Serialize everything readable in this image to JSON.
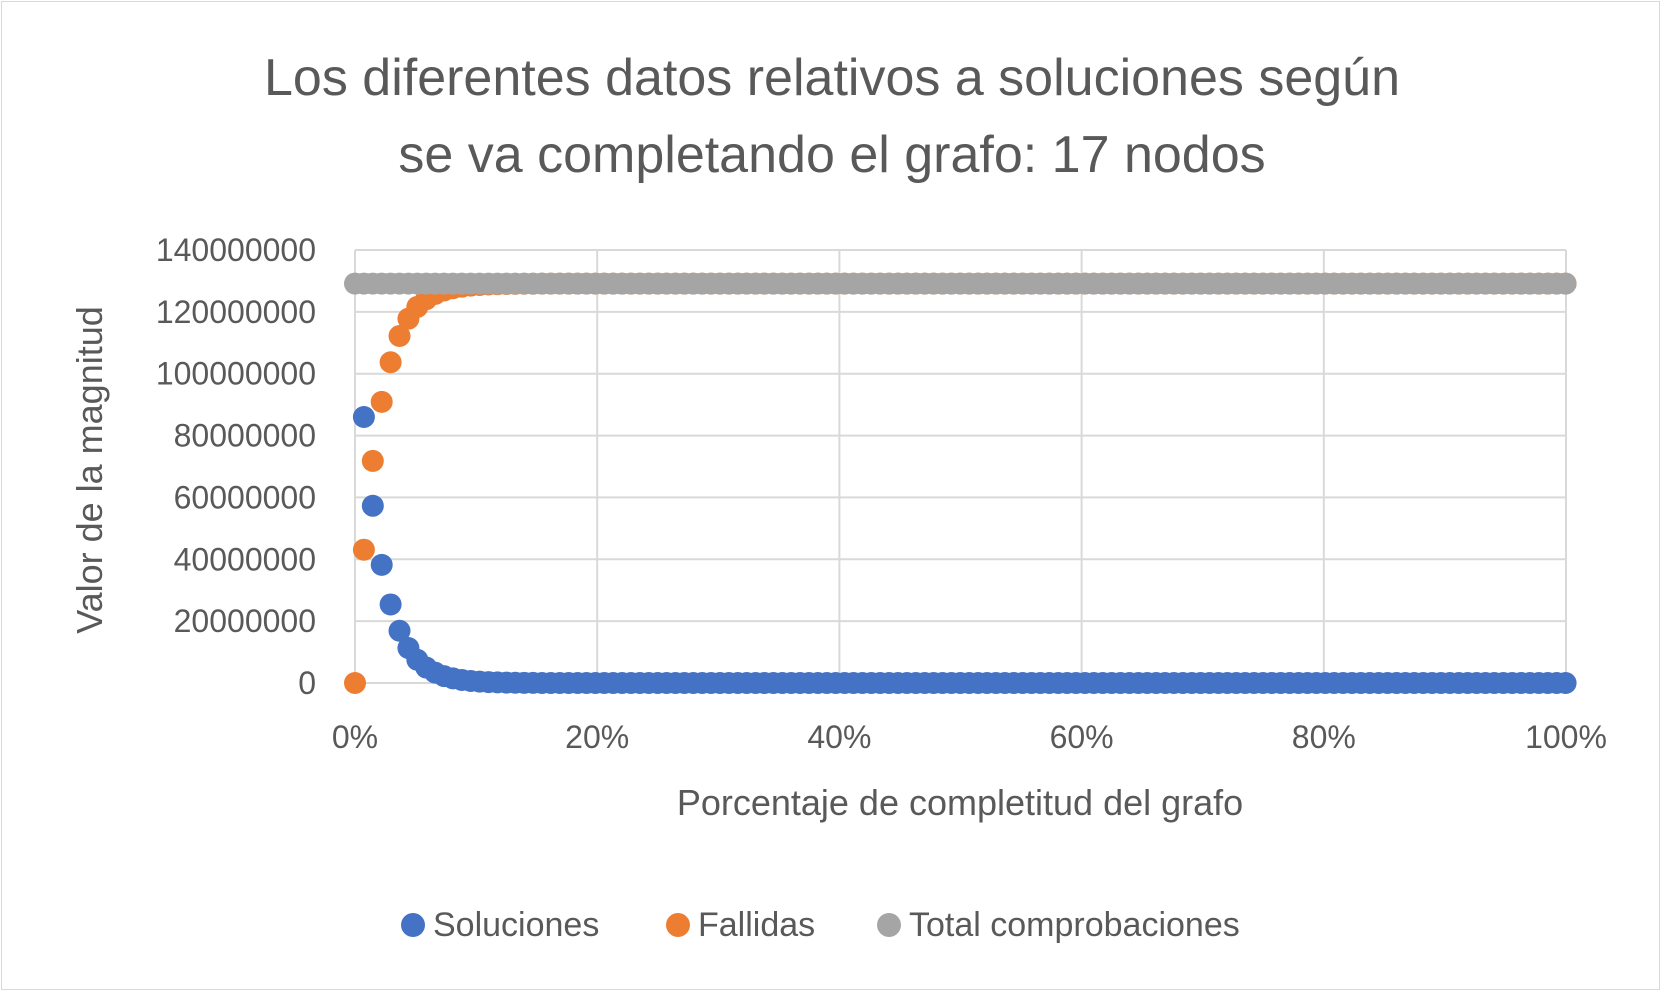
{
  "chart_data": {
    "type": "scatter",
    "title_lines": [
      "Los diferentes datos relativos a soluciones según",
      "se va completando el grafo: 17 nodos"
    ],
    "xlabel": "Porcentaje de completitud del grafo",
    "ylabel": "Valor de la magnitud",
    "x_ticks": [
      "0%",
      "20%",
      "40%",
      "60%",
      "80%",
      "100%"
    ],
    "y_ticks": [
      "0",
      "20000000",
      "40000000",
      "60000000",
      "80000000",
      "100000000",
      "120000000",
      "140000000"
    ],
    "xlim": [
      0,
      1
    ],
    "ylim": [
      0,
      140000000
    ],
    "grid": true,
    "legend_position": "bottom",
    "total_value": 129140163,
    "series": [
      {
        "name": "Soluciones",
        "color": "#4472c4",
        "x": [
          0.00735,
          0.01471,
          0.02206,
          0.02941,
          0.03676,
          0.04412,
          0.05147,
          0.05882,
          0.06618,
          0.07353,
          0.08088,
          0.08824,
          0.09559,
          0.10294,
          0.11029,
          0.11765,
          0.125,
          0.13235,
          0.13971,
          0.14706
        ],
        "y": [
          86000000,
          57300000,
          38200000,
          25400000,
          16900000,
          11300000,
          7500000,
          5000000,
          3350000,
          2230000,
          1490000,
          990000,
          660000,
          440000,
          293000,
          195000,
          130000,
          87000,
          58000,
          38600
        ],
        "tail": {
          "from": 0.15441,
          "to": 1.0,
          "step": 0.00735,
          "y": 0
        }
      },
      {
        "name": "Fallidas",
        "color": "#ed7d31",
        "x": [
          0.0,
          0.00735,
          0.01471,
          0.02206,
          0.02941,
          0.03676,
          0.04412,
          0.05147,
          0.05882,
          0.06618,
          0.07353,
          0.08088,
          0.08824,
          0.09559,
          0.10294,
          0.11029,
          0.11765,
          0.125,
          0.13235,
          0.13971,
          0.14706
        ],
        "y": [
          0,
          43100000,
          71800000,
          90900000,
          103700000,
          112200000,
          117800000,
          121600000,
          124100000,
          125800000,
          126900000,
          127650000,
          128150000,
          128480000,
          128700000,
          128850000,
          128945000,
          129010000,
          129053000,
          129082000,
          129101000
        ],
        "tail": {
          "from": 0.15441,
          "to": 1.0,
          "step": 0.00735,
          "y": 129140163
        }
      },
      {
        "name": "Total comprobaciones",
        "color": "#a5a5a5",
        "x": [],
        "y": [],
        "tail": {
          "from": 0.0,
          "to": 1.0,
          "step": 0.00735,
          "y": 129140163
        }
      }
    ]
  }
}
